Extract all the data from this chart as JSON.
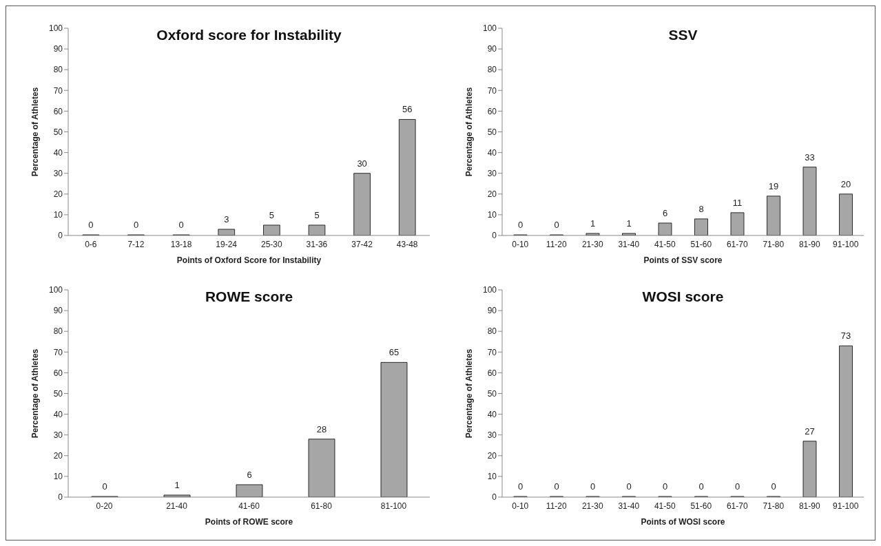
{
  "chart_data": [
    {
      "type": "bar",
      "title": "Oxford score for Instability",
      "xlabel": "Points of Oxford Score for Instability",
      "ylabel": "Percentage of Athletes",
      "categories": [
        "0-6",
        "7-12",
        "13-18",
        "19-24",
        "25-30",
        "31-36",
        "37-42",
        "43-48"
      ],
      "values": [
        0,
        0,
        0,
        3,
        5,
        5,
        30,
        56
      ],
      "color": "#a6a6a6",
      "ylim": [
        0,
        100
      ],
      "yticks": [
        0,
        10,
        20,
        30,
        40,
        50,
        60,
        70,
        80,
        90,
        100
      ],
      "data_labels": true,
      "grid": false
    },
    {
      "type": "bar",
      "title": "SSV",
      "xlabel": "Points of SSV score",
      "ylabel": "Percentage of Athletes",
      "categories": [
        "0-10",
        "11-20",
        "21-30",
        "31-40",
        "41-50",
        "51-60",
        "61-70",
        "71-80",
        "81-90",
        "91-100"
      ],
      "values": [
        0,
        0,
        1,
        1,
        6,
        8,
        11,
        19,
        33,
        20
      ],
      "color": "#a6a6a6",
      "ylim": [
        0,
        100
      ],
      "yticks": [
        0,
        10,
        20,
        30,
        40,
        50,
        60,
        70,
        80,
        90,
        100
      ],
      "data_labels": true,
      "grid": false
    },
    {
      "type": "bar",
      "title": "ROWE score",
      "xlabel": "Points of ROWE score",
      "ylabel": "Percentage of Athletes",
      "categories": [
        "0-20",
        "21-40",
        "41-60",
        "61-80",
        "81-100"
      ],
      "values": [
        0,
        1,
        6,
        28,
        65
      ],
      "color": "#a6a6a6",
      "ylim": [
        0,
        100
      ],
      "yticks": [
        0,
        10,
        20,
        30,
        40,
        50,
        60,
        70,
        80,
        90,
        100
      ],
      "data_labels": true,
      "grid": false
    },
    {
      "type": "bar",
      "title": "WOSI score",
      "xlabel": "Points of WOSI score",
      "ylabel": "Percentage of Athletes",
      "categories": [
        "0-10",
        "11-20",
        "21-30",
        "31-40",
        "41-50",
        "51-60",
        "61-70",
        "71-80",
        "81-90",
        "91-100"
      ],
      "values": [
        0,
        0,
        0,
        0,
        0,
        0,
        0,
        0,
        27,
        73
      ],
      "color": "#a6a6a6",
      "ylim": [
        0,
        100
      ],
      "yticks": [
        0,
        10,
        20,
        30,
        40,
        50,
        60,
        70,
        80,
        90,
        100
      ],
      "data_labels": true,
      "grid": false
    }
  ]
}
